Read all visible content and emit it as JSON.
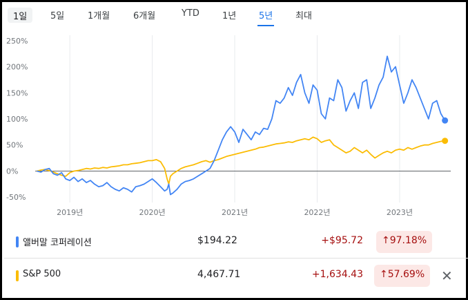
{
  "tabs": [
    "1일",
    "5일",
    "1개월",
    "6개월",
    "YTD",
    "1년",
    "5년",
    "최대"
  ],
  "colors": {
    "series1": "#4285f4",
    "series2": "#fbbc04",
    "baseline": "#5f6368",
    "grid": "#e8eaed",
    "loss": "#a50e0e"
  },
  "chart_data": {
    "type": "line",
    "y_tick_labels": [
      "250%",
      "200%",
      "150%",
      "100%",
      "50%",
      "0%",
      "-50%"
    ],
    "y_ticks": [
      250,
      200,
      150,
      100,
      50,
      0,
      -50
    ],
    "ylim": [
      -55,
      255
    ],
    "xlim": [
      2018.58,
      2023.62
    ],
    "x_tick_labels": [
      "2019년",
      "2020년",
      "2021년",
      "2022년",
      "2023년"
    ],
    "x_ticks": [
      2019,
      2020,
      2021,
      2022,
      2023
    ],
    "grid": "vertical",
    "series": [
      {
        "name": "앨버말 코퍼레이션",
        "color": "#4285f4",
        "x": [
          2018.6,
          2018.65,
          2018.7,
          2018.75,
          2018.8,
          2018.85,
          2018.9,
          2018.95,
          2019.0,
          2019.05,
          2019.1,
          2019.15,
          2019.2,
          2019.25,
          2019.3,
          2019.35,
          2019.4,
          2019.45,
          2019.5,
          2019.55,
          2019.6,
          2019.65,
          2019.7,
          2019.75,
          2019.8,
          2019.85,
          2019.9,
          2019.95,
          2020.0,
          2020.05,
          2020.1,
          2020.15,
          2020.18,
          2020.2,
          2020.22,
          2020.25,
          2020.3,
          2020.35,
          2020.4,
          2020.45,
          2020.5,
          2020.55,
          2020.6,
          2020.65,
          2020.7,
          2020.75,
          2020.8,
          2020.85,
          2020.9,
          2020.95,
          2021.0,
          2021.05,
          2021.1,
          2021.15,
          2021.2,
          2021.25,
          2021.3,
          2021.35,
          2021.4,
          2021.45,
          2021.5,
          2021.55,
          2021.6,
          2021.65,
          2021.7,
          2021.75,
          2021.8,
          2021.85,
          2021.9,
          2021.95,
          2022.0,
          2022.05,
          2022.1,
          2022.15,
          2022.2,
          2022.25,
          2022.3,
          2022.35,
          2022.4,
          2022.45,
          2022.5,
          2022.55,
          2022.6,
          2022.65,
          2022.7,
          2022.75,
          2022.8,
          2022.85,
          2022.9,
          2022.95,
          2023.0,
          2023.05,
          2023.1,
          2023.15,
          2023.2,
          2023.25,
          2023.3,
          2023.35,
          2023.4,
          2023.45,
          2023.5,
          2023.55
        ],
        "values": [
          0,
          -2,
          3,
          5,
          -5,
          -8,
          -3,
          -15,
          -18,
          -12,
          -20,
          -15,
          -22,
          -18,
          -25,
          -30,
          -28,
          -22,
          -30,
          -35,
          -38,
          -32,
          -35,
          -40,
          -30,
          -28,
          -25,
          -20,
          -15,
          -22,
          -30,
          -38,
          -35,
          -25,
          -45,
          -42,
          -35,
          -25,
          -20,
          -18,
          -15,
          -10,
          -5,
          0,
          5,
          20,
          40,
          60,
          75,
          85,
          75,
          55,
          80,
          70,
          60,
          75,
          70,
          82,
          80,
          100,
          135,
          130,
          140,
          160,
          145,
          170,
          185,
          150,
          130,
          165,
          155,
          110,
          100,
          140,
          135,
          175,
          160,
          115,
          135,
          150,
          120,
          170,
          175,
          120,
          140,
          165,
          180,
          220,
          190,
          200,
          165,
          130,
          150,
          175,
          160,
          140,
          120,
          100,
          130,
          135,
          110,
          97
        ]
      },
      {
        "name": "S&P 500",
        "color": "#fbbc04",
        "x": [
          2018.6,
          2018.65,
          2018.7,
          2018.75,
          2018.8,
          2018.85,
          2018.9,
          2018.95,
          2019.0,
          2019.05,
          2019.1,
          2019.15,
          2019.2,
          2019.25,
          2019.3,
          2019.35,
          2019.4,
          2019.45,
          2019.5,
          2019.55,
          2019.6,
          2019.65,
          2019.7,
          2019.75,
          2019.8,
          2019.85,
          2019.9,
          2019.95,
          2020.0,
          2020.05,
          2020.1,
          2020.15,
          2020.18,
          2020.2,
          2020.22,
          2020.25,
          2020.3,
          2020.35,
          2020.4,
          2020.45,
          2020.5,
          2020.55,
          2020.6,
          2020.65,
          2020.7,
          2020.75,
          2020.8,
          2020.85,
          2020.9,
          2020.95,
          2021.0,
          2021.05,
          2021.1,
          2021.15,
          2021.2,
          2021.25,
          2021.3,
          2021.35,
          2021.4,
          2021.45,
          2021.5,
          2021.55,
          2021.6,
          2021.65,
          2021.7,
          2021.75,
          2021.8,
          2021.85,
          2021.9,
          2021.95,
          2022.0,
          2022.05,
          2022.1,
          2022.15,
          2022.2,
          2022.25,
          2022.3,
          2022.35,
          2022.4,
          2022.45,
          2022.5,
          2022.55,
          2022.6,
          2022.65,
          2022.7,
          2022.75,
          2022.8,
          2022.85,
          2022.9,
          2022.95,
          2023.0,
          2023.05,
          2023.1,
          2023.15,
          2023.2,
          2023.25,
          2023.3,
          2023.35,
          2023.4,
          2023.45,
          2023.5,
          2023.55
        ],
        "values": [
          0,
          2,
          3,
          1,
          -2,
          -5,
          -8,
          -10,
          -3,
          0,
          1,
          3,
          5,
          4,
          6,
          5,
          7,
          6,
          8,
          9,
          10,
          12,
          12,
          14,
          15,
          16,
          18,
          20,
          20,
          22,
          18,
          5,
          -15,
          -25,
          -10,
          -5,
          0,
          5,
          8,
          10,
          12,
          15,
          18,
          20,
          17,
          20,
          22,
          25,
          28,
          30,
          32,
          34,
          36,
          38,
          40,
          42,
          45,
          46,
          48,
          50,
          52,
          53,
          54,
          56,
          55,
          58,
          60,
          62,
          60,
          65,
          62,
          55,
          58,
          60,
          50,
          45,
          40,
          35,
          38,
          45,
          40,
          35,
          40,
          32,
          25,
          30,
          35,
          38,
          35,
          40,
          42,
          40,
          45,
          42,
          45,
          48,
          50,
          50,
          53,
          55,
          57,
          58
        ]
      }
    ]
  },
  "legend": [
    {
      "name": "앨버말 코퍼레이션",
      "price": "$194.22",
      "change": "+$95.72",
      "pct": "97.18%"
    },
    {
      "name": "S&P 500",
      "price": "4,467.71",
      "change": "+1,634.43",
      "pct": "57.69%"
    }
  ]
}
